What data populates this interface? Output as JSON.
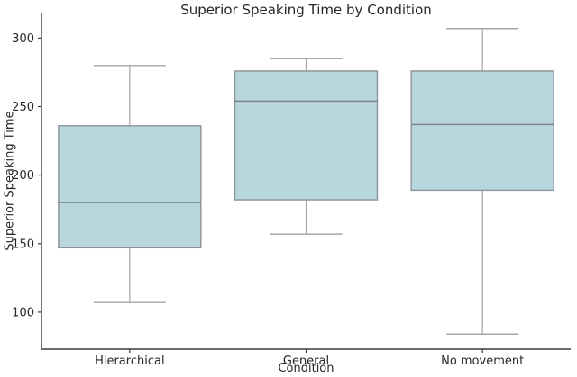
{
  "figure": {
    "title": "Superior Speaking Time by Condition",
    "xlabel": "Condition",
    "ylabel": "Superior Speaking Time"
  },
  "chart_data": {
    "type": "boxplot",
    "title": "Superior Speaking Time by Condition",
    "xlabel": "Condition",
    "ylabel": "Superior Speaking Time",
    "categories": [
      "Hierarchical",
      "General",
      "No movement"
    ],
    "series": [
      {
        "name": "Hierarchical",
        "min": 107,
        "q1": 147,
        "median": 180,
        "q3": 236,
        "max": 280
      },
      {
        "name": "General",
        "min": 157,
        "q1": 182,
        "median": 254,
        "q3": 276,
        "max": 285
      },
      {
        "name": "No movement",
        "min": 84,
        "q1": 189,
        "median": 237,
        "q3": 276,
        "max": 307
      }
    ],
    "y_ticks": [
      100,
      150,
      200,
      250,
      300
    ],
    "ylim": [
      73,
      318
    ],
    "grid": false,
    "legend": "none",
    "colors": {
      "box_fill": "#b8d6de",
      "box_edge": "#8c9296",
      "median_line": "#7e8387",
      "whisker": "#a6a6a6",
      "cap": "#a6a6a6",
      "spine": "#3a3a3a",
      "text": "#262626",
      "background": "#ffffff"
    }
  }
}
